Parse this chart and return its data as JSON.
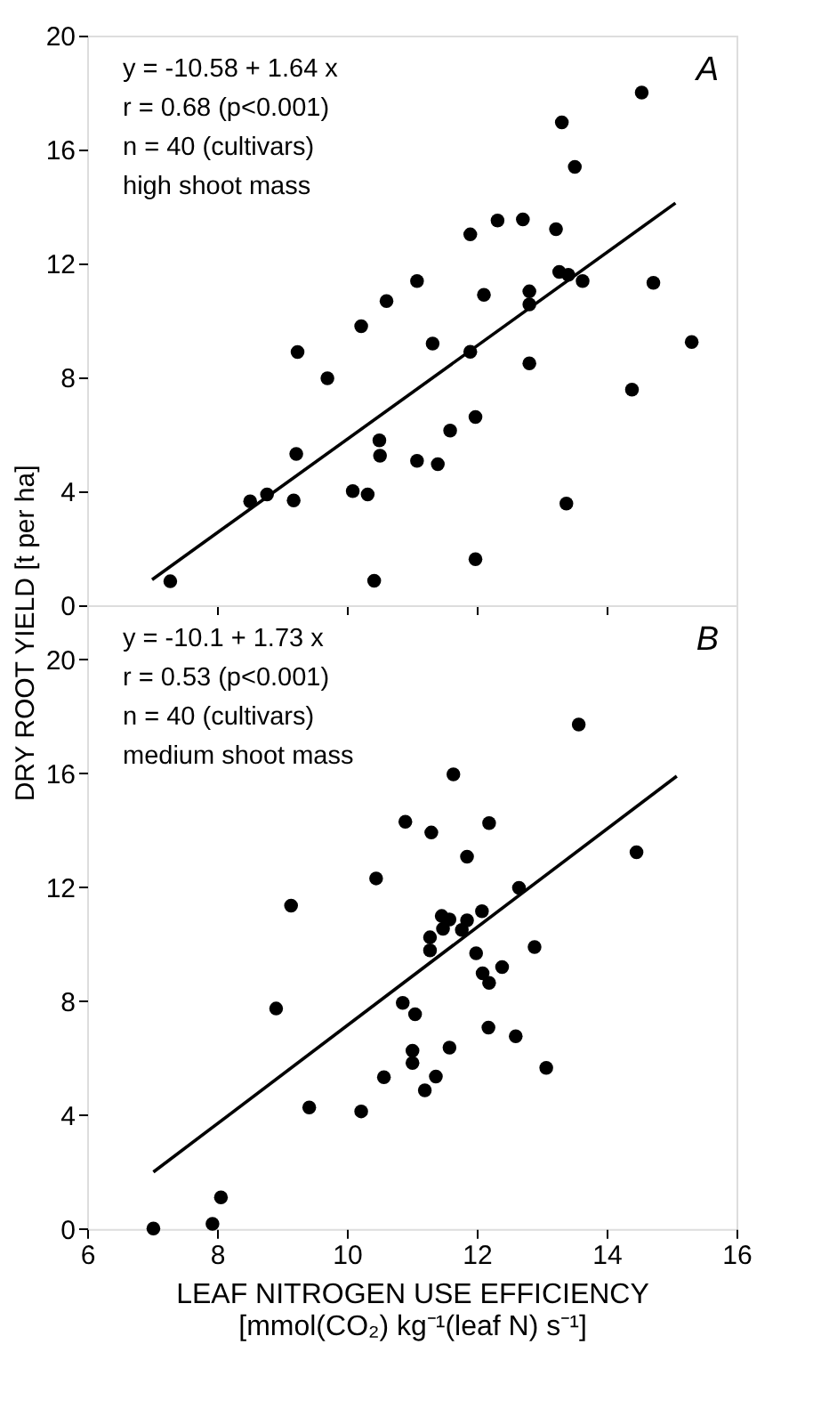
{
  "chart_data": [
    {
      "type": "scatter",
      "ylabel": "DRY ROOT YIELD [t per ha]",
      "xlim": [
        6,
        16
      ],
      "xticks": [
        6,
        8,
        10,
        12,
        14,
        16
      ],
      "ylim": [
        0,
        20
      ],
      "yticks": [
        0,
        4,
        8,
        12,
        16,
        20
      ],
      "tick_labels": "y",
      "grid": false,
      "marker": "circle",
      "annotations": [
        "y = -10.58 + 1.64 x",
        "r = 0.68 (p<0.001)",
        "n = 40 (cultivars)",
        "high shoot mass",
        "A"
      ],
      "series": [
        {
          "color": "#000000",
          "x": [
            14.54,
            13.31,
            13.51,
            11.9,
            12.32,
            12.71,
            13.22,
            11.08,
            10.61,
            13.27,
            13.41,
            13.63,
            14.72,
            12.11,
            12.81,
            12.81,
            10.22,
            11.32,
            15.31,
            9.24,
            9.7,
            11.9,
            12.81,
            14.39,
            11.98,
            11.59,
            10.5,
            10.51,
            9.22,
            11.08,
            11.4,
            8.51,
            8.77,
            9.18,
            10.09,
            10.32,
            13.38,
            7.28,
            10.42,
            11.98
          ],
          "values": [
            18.0,
            16.95,
            15.39,
            13.02,
            13.51,
            13.55,
            13.2,
            11.38,
            10.68,
            11.7,
            11.6,
            11.38,
            11.32,
            10.9,
            11.02,
            10.56,
            9.8,
            9.19,
            9.24,
            8.89,
            7.97,
            8.9,
            8.49,
            7.57,
            6.61,
            6.13,
            5.79,
            5.25,
            5.31,
            5.07,
            4.95,
            3.65,
            3.89,
            3.68,
            4.01,
            3.89,
            3.57,
            0.84,
            0.86,
            1.62
          ]
        },
        {
          "type": "line",
          "color": "#000000",
          "marker": "none",
          "line_style": "solid",
          "x": [
            7.0,
            15.06
          ],
          "values": [
            0.9,
            14.12
          ]
        }
      ]
    },
    {
      "type": "scatter",
      "xlabel": "LEAF NITROGEN USE EFFICIENCY\n[mmol(CO₂) kg⁻¹(leaf N) s⁻¹]",
      "xlim": [
        6,
        16
      ],
      "xticks": [
        6,
        8,
        10,
        12,
        14,
        16
      ],
      "ylim": [
        0,
        21.9
      ],
      "yticks": [
        0,
        4,
        8,
        12,
        16,
        20
      ],
      "grid": false,
      "marker": "circle",
      "annotations": [
        "y = -10.1 + 1.73 x",
        "r = 0.53 (p<0.001)",
        "n = 40 (cultivars)",
        "medium shoot mass",
        "B"
      ],
      "series": [
        {
          "color": "#000000",
          "x": [
            13.57,
            11.64,
            10.9,
            11.3,
            12.19,
            11.85,
            14.46,
            10.45,
            9.14,
            12.65,
            12.08,
            11.46,
            11.58,
            11.85,
            11.48,
            11.77,
            11.28,
            11.28,
            11.99,
            12.89,
            12.39,
            12.09,
            12.19,
            8.91,
            10.86,
            11.05,
            12.18,
            12.6,
            11.01,
            11.01,
            11.58,
            13.07,
            10.57,
            11.37,
            11.2,
            9.42,
            10.22,
            8.06,
            7.93,
            7.02
          ],
          "values": [
            17.71,
            15.96,
            14.3,
            13.92,
            14.25,
            13.07,
            13.23,
            12.31,
            11.35,
            11.98,
            11.16,
            10.99,
            10.87,
            10.84,
            10.54,
            10.5,
            10.24,
            9.78,
            9.68,
            9.9,
            9.2,
            8.98,
            8.64,
            7.74,
            7.94,
            7.54,
            7.07,
            6.77,
            6.26,
            5.83,
            6.37,
            5.66,
            5.33,
            5.35,
            4.87,
            4.27,
            4.13,
            1.11,
            0.18,
            0.02
          ]
        },
        {
          "type": "line",
          "color": "#000000",
          "marker": "none",
          "line_style": "solid",
          "x": [
            7.02,
            15.08
          ],
          "values": [
            2.0,
            15.9
          ]
        }
      ]
    }
  ]
}
